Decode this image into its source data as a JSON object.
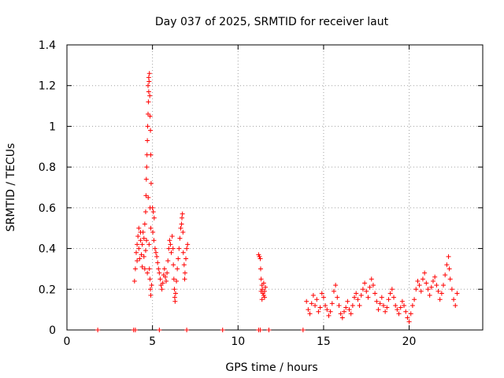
{
  "chart_data": {
    "type": "scatter",
    "title": "Day 037 of 2025, SRMTID for receiver laut",
    "xlabel": "GPS time / hours",
    "ylabel": "SRMTID / TECUs",
    "xlim": [
      0,
      24.3
    ],
    "ylim": [
      0,
      1.4
    ],
    "xticks": [
      0,
      5,
      10,
      15,
      20
    ],
    "xtick_labels": [
      "0",
      "5",
      "10",
      "15",
      "20"
    ],
    "yticks": [
      0,
      0.2,
      0.4,
      0.6,
      0.8,
      1,
      1.2,
      1.4
    ],
    "ytick_labels": [
      "0",
      "0.2",
      "0.4",
      "0.6",
      "0.8",
      "1",
      "1.2",
      "1.4"
    ],
    "grid": true,
    "marker": "+",
    "series": [
      {
        "name": "SRMTID",
        "color": "#ff0000",
        "points": [
          [
            1.8,
            0.0
          ],
          [
            3.9,
            0.0
          ],
          [
            4.0,
            0.0
          ],
          [
            5.4,
            0.0
          ],
          [
            7.0,
            0.0
          ],
          [
            9.1,
            0.0
          ],
          [
            11.2,
            0.0
          ],
          [
            11.3,
            0.0
          ],
          [
            11.8,
            0.0
          ],
          [
            13.8,
            0.0
          ],
          [
            3.95,
            0.24
          ],
          [
            4.0,
            0.3
          ],
          [
            4.05,
            0.38
          ],
          [
            4.1,
            0.42
          ],
          [
            4.15,
            0.46
          ],
          [
            4.2,
            0.4
          ],
          [
            4.25,
            0.35
          ],
          [
            4.3,
            0.44
          ],
          [
            4.35,
            0.37
          ],
          [
            4.4,
            0.31
          ],
          [
            4.45,
            0.48
          ],
          [
            4.5,
            0.36
          ],
          [
            4.55,
            0.3
          ],
          [
            4.6,
            0.39
          ],
          [
            4.65,
            0.44
          ],
          [
            4.2,
            0.5
          ],
          [
            4.3,
            0.48
          ],
          [
            4.1,
            0.34
          ],
          [
            4.4,
            0.42
          ],
          [
            4.5,
            0.45
          ],
          [
            4.55,
            0.52
          ],
          [
            4.6,
            0.58
          ],
          [
            4.62,
            0.66
          ],
          [
            4.64,
            0.74
          ],
          [
            4.66,
            0.8
          ],
          [
            4.68,
            0.86
          ],
          [
            4.7,
            0.93
          ],
          [
            4.72,
            1.0
          ],
          [
            4.74,
            1.06
          ],
          [
            4.76,
            1.12
          ],
          [
            4.78,
            1.17
          ],
          [
            4.8,
            1.22
          ],
          [
            4.82,
            1.26
          ],
          [
            4.78,
            1.24
          ],
          [
            4.74,
            1.2
          ],
          [
            4.84,
            1.15
          ],
          [
            4.86,
            1.05
          ],
          [
            4.88,
            0.98
          ],
          [
            4.9,
            0.86
          ],
          [
            4.92,
            0.72
          ],
          [
            4.75,
            0.65
          ],
          [
            4.86,
            0.6
          ],
          [
            4.9,
            0.5
          ],
          [
            4.8,
            0.42
          ],
          [
            4.82,
            0.3
          ],
          [
            4.85,
            0.25
          ],
          [
            4.88,
            0.2
          ],
          [
            4.9,
            0.17
          ],
          [
            4.95,
            0.22
          ],
          [
            4.7,
            0.28
          ],
          [
            5.0,
            0.6
          ],
          [
            5.05,
            0.58
          ],
          [
            5.1,
            0.55
          ],
          [
            5.02,
            0.48
          ],
          [
            5.08,
            0.44
          ],
          [
            5.15,
            0.4
          ],
          [
            5.2,
            0.38
          ],
          [
            5.25,
            0.36
          ],
          [
            5.3,
            0.33
          ],
          [
            5.35,
            0.3
          ],
          [
            5.4,
            0.28
          ],
          [
            5.45,
            0.25
          ],
          [
            5.5,
            0.22
          ],
          [
            5.55,
            0.2
          ],
          [
            5.6,
            0.23
          ],
          [
            5.65,
            0.27
          ],
          [
            5.7,
            0.3
          ],
          [
            5.75,
            0.26
          ],
          [
            5.8,
            0.24
          ],
          [
            5.85,
            0.28
          ],
          [
            5.9,
            0.34
          ],
          [
            5.95,
            0.4
          ],
          [
            6.0,
            0.44
          ],
          [
            6.05,
            0.42
          ],
          [
            6.1,
            0.38
          ],
          [
            6.15,
            0.46
          ],
          [
            6.2,
            0.4
          ],
          [
            6.22,
            0.32
          ],
          [
            6.25,
            0.25
          ],
          [
            6.28,
            0.2
          ],
          [
            6.3,
            0.16
          ],
          [
            6.32,
            0.14
          ],
          [
            6.35,
            0.18
          ],
          [
            6.4,
            0.24
          ],
          [
            6.45,
            0.3
          ],
          [
            6.5,
            0.35
          ],
          [
            6.55,
            0.4
          ],
          [
            6.6,
            0.45
          ],
          [
            6.65,
            0.5
          ],
          [
            6.7,
            0.52
          ],
          [
            6.72,
            0.55
          ],
          [
            6.75,
            0.57
          ],
          [
            6.78,
            0.48
          ],
          [
            6.8,
            0.38
          ],
          [
            6.85,
            0.32
          ],
          [
            6.9,
            0.28
          ],
          [
            6.95,
            0.35
          ],
          [
            7.0,
            0.4
          ],
          [
            7.05,
            0.42
          ],
          [
            6.88,
            0.25
          ],
          [
            11.2,
            0.37
          ],
          [
            11.25,
            0.36
          ],
          [
            11.3,
            0.35
          ],
          [
            11.32,
            0.3
          ],
          [
            11.35,
            0.25
          ],
          [
            11.4,
            0.22
          ],
          [
            11.42,
            0.2
          ],
          [
            11.45,
            0.18
          ],
          [
            11.5,
            0.17
          ],
          [
            11.55,
            0.19
          ],
          [
            11.6,
            0.21
          ],
          [
            11.35,
            0.19
          ],
          [
            11.5,
            0.23
          ],
          [
            11.4,
            0.15
          ],
          [
            11.55,
            0.16
          ],
          [
            14.0,
            0.14
          ],
          [
            14.1,
            0.1
          ],
          [
            14.2,
            0.08
          ],
          [
            14.3,
            0.13
          ],
          [
            14.4,
            0.17
          ],
          [
            14.5,
            0.12
          ],
          [
            14.6,
            0.15
          ],
          [
            14.7,
            0.09
          ],
          [
            14.8,
            0.11
          ],
          [
            14.9,
            0.18
          ],
          [
            15.0,
            0.16
          ],
          [
            15.1,
            0.12
          ],
          [
            15.2,
            0.1
          ],
          [
            15.3,
            0.07
          ],
          [
            15.4,
            0.09
          ],
          [
            15.5,
            0.13
          ],
          [
            15.6,
            0.19
          ],
          [
            15.7,
            0.22
          ],
          [
            15.8,
            0.16
          ],
          [
            15.9,
            0.12
          ],
          [
            16.0,
            0.08
          ],
          [
            16.1,
            0.06
          ],
          [
            16.2,
            0.09
          ],
          [
            16.3,
            0.11
          ],
          [
            16.4,
            0.14
          ],
          [
            16.5,
            0.1
          ],
          [
            16.6,
            0.08
          ],
          [
            16.7,
            0.12
          ],
          [
            16.8,
            0.16
          ],
          [
            16.9,
            0.18
          ],
          [
            17.0,
            0.15
          ],
          [
            17.1,
            0.12
          ],
          [
            17.2,
            0.17
          ],
          [
            17.3,
            0.2
          ],
          [
            17.4,
            0.23
          ],
          [
            17.5,
            0.19
          ],
          [
            17.6,
            0.16
          ],
          [
            17.7,
            0.21
          ],
          [
            17.8,
            0.25
          ],
          [
            17.9,
            0.22
          ],
          [
            18.0,
            0.18
          ],
          [
            18.1,
            0.14
          ],
          [
            18.2,
            0.1
          ],
          [
            18.3,
            0.13
          ],
          [
            18.4,
            0.16
          ],
          [
            18.5,
            0.12
          ],
          [
            18.6,
            0.09
          ],
          [
            18.7,
            0.11
          ],
          [
            18.8,
            0.15
          ],
          [
            18.9,
            0.18
          ],
          [
            19.0,
            0.2
          ],
          [
            19.1,
            0.16
          ],
          [
            19.2,
            0.12
          ],
          [
            19.3,
            0.1
          ],
          [
            19.4,
            0.08
          ],
          [
            19.5,
            0.11
          ],
          [
            19.6,
            0.14
          ],
          [
            19.7,
            0.12
          ],
          [
            19.8,
            0.09
          ],
          [
            19.9,
            0.06
          ],
          [
            20.0,
            0.04
          ],
          [
            20.1,
            0.08
          ],
          [
            20.2,
            0.12
          ],
          [
            20.3,
            0.15
          ],
          [
            20.4,
            0.2
          ],
          [
            20.5,
            0.24
          ],
          [
            20.6,
            0.22
          ],
          [
            20.7,
            0.19
          ],
          [
            20.8,
            0.25
          ],
          [
            20.9,
            0.28
          ],
          [
            21.0,
            0.23
          ],
          [
            21.1,
            0.2
          ],
          [
            21.2,
            0.17
          ],
          [
            21.3,
            0.21
          ],
          [
            21.4,
            0.24
          ],
          [
            21.5,
            0.26
          ],
          [
            21.6,
            0.22
          ],
          [
            21.7,
            0.19
          ],
          [
            21.8,
            0.15
          ],
          [
            21.9,
            0.18
          ],
          [
            22.0,
            0.22
          ],
          [
            22.1,
            0.27
          ],
          [
            22.2,
            0.32
          ],
          [
            22.3,
            0.36
          ],
          [
            22.35,
            0.3
          ],
          [
            22.4,
            0.25
          ],
          [
            22.5,
            0.2
          ],
          [
            22.6,
            0.15
          ],
          [
            22.7,
            0.12
          ],
          [
            22.8,
            0.18
          ]
        ]
      }
    ]
  }
}
